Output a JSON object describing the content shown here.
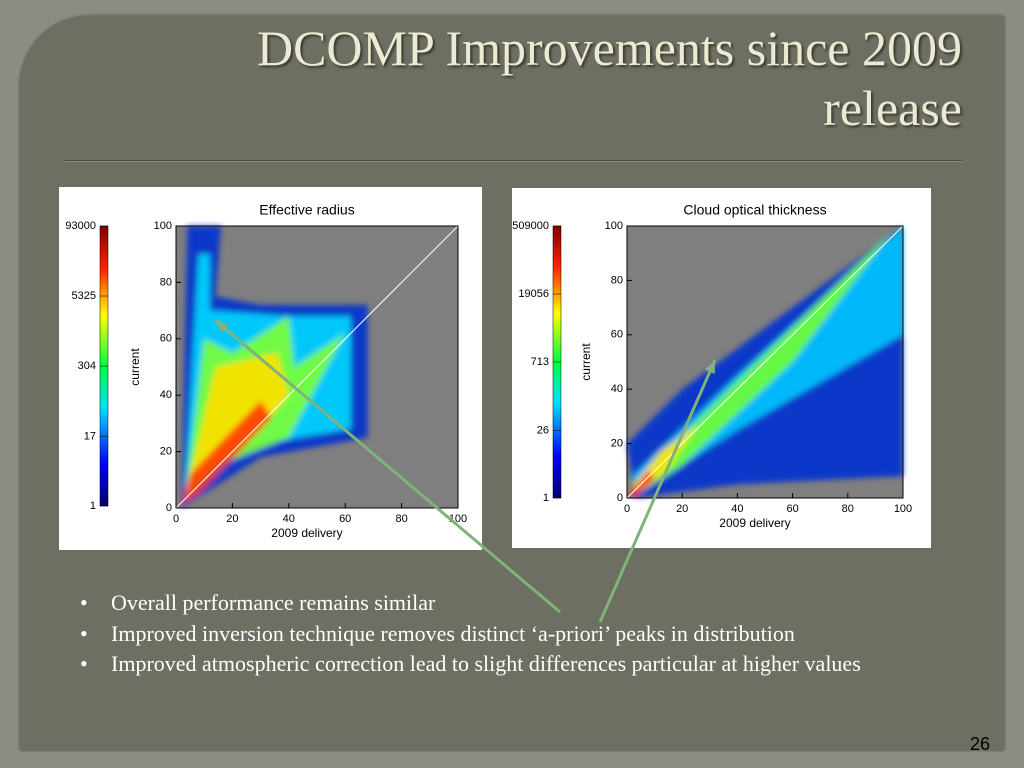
{
  "title": "DCOMP Improvements since 2009 release",
  "chart_data": [
    {
      "type": "heatmap",
      "title": "Effective radius",
      "xlabel": "2009 delivery",
      "ylabel": "current",
      "xlim": [
        0,
        100
      ],
      "ylim": [
        0,
        100
      ],
      "xticks": [
        0,
        20,
        40,
        60,
        80,
        100
      ],
      "yticks": [
        0,
        20,
        40,
        60,
        80,
        100
      ],
      "colorbar": {
        "log": true,
        "lim": [
          1,
          93000
        ],
        "ticks": [
          1,
          17,
          304,
          5325,
          93000
        ]
      }
    },
    {
      "type": "heatmap",
      "title": "Cloud optical thickness",
      "xlabel": "2009 delivery",
      "ylabel": "current",
      "xlim": [
        0,
        100
      ],
      "ylim": [
        0,
        100
      ],
      "xticks": [
        0,
        20,
        40,
        60,
        80,
        100
      ],
      "yticks": [
        0,
        20,
        40,
        60,
        80,
        100
      ],
      "colorbar": {
        "log": true,
        "lim": [
          1,
          509000
        ],
        "ticks": [
          1,
          26,
          713,
          19056,
          509000
        ]
      }
    }
  ],
  "bullets": [
    "Overall performance remains similar",
    "Improved inversion technique removes distinct  ‘a-priori’ peaks in distribution",
    "Improved atmospheric correction  lead to slight differences particular at higher values"
  ],
  "page_number": 26
}
